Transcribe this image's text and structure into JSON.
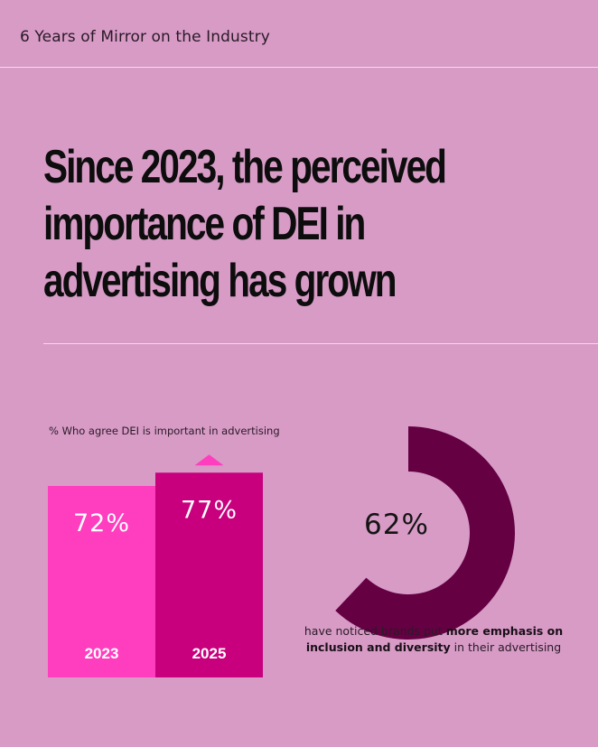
{
  "header": {
    "title": "6 Years of Mirror on the Industry"
  },
  "headline": {
    "line1": "Since 2023, the perceived",
    "line2": "importance of DEI in",
    "line3": "advertising has grown"
  },
  "colors": {
    "background": "#d79bc6",
    "bar_2023": "#ff3dbf",
    "bar_2025": "#c8007e",
    "donut": "#650043",
    "arrow": "#ff3dbf",
    "rule": "#f1dcea"
  },
  "chart_data": [
    {
      "type": "bar",
      "title": "% Who agree DEI is important in advertising",
      "categories": [
        "2023",
        "2025"
      ],
      "values": [
        72,
        77
      ],
      "value_labels": [
        "72%",
        "77%"
      ],
      "annotation": "up-arrow-icon above 2025",
      "ylim": [
        0,
        100
      ]
    },
    {
      "type": "pie",
      "style": "donut",
      "values": [
        62
      ],
      "value_label": "62%",
      "caption_pre": "have noticed brands put ",
      "caption_bold": "more emphasis on inclusion and diversity",
      "caption_post": " in their advertising"
    }
  ]
}
